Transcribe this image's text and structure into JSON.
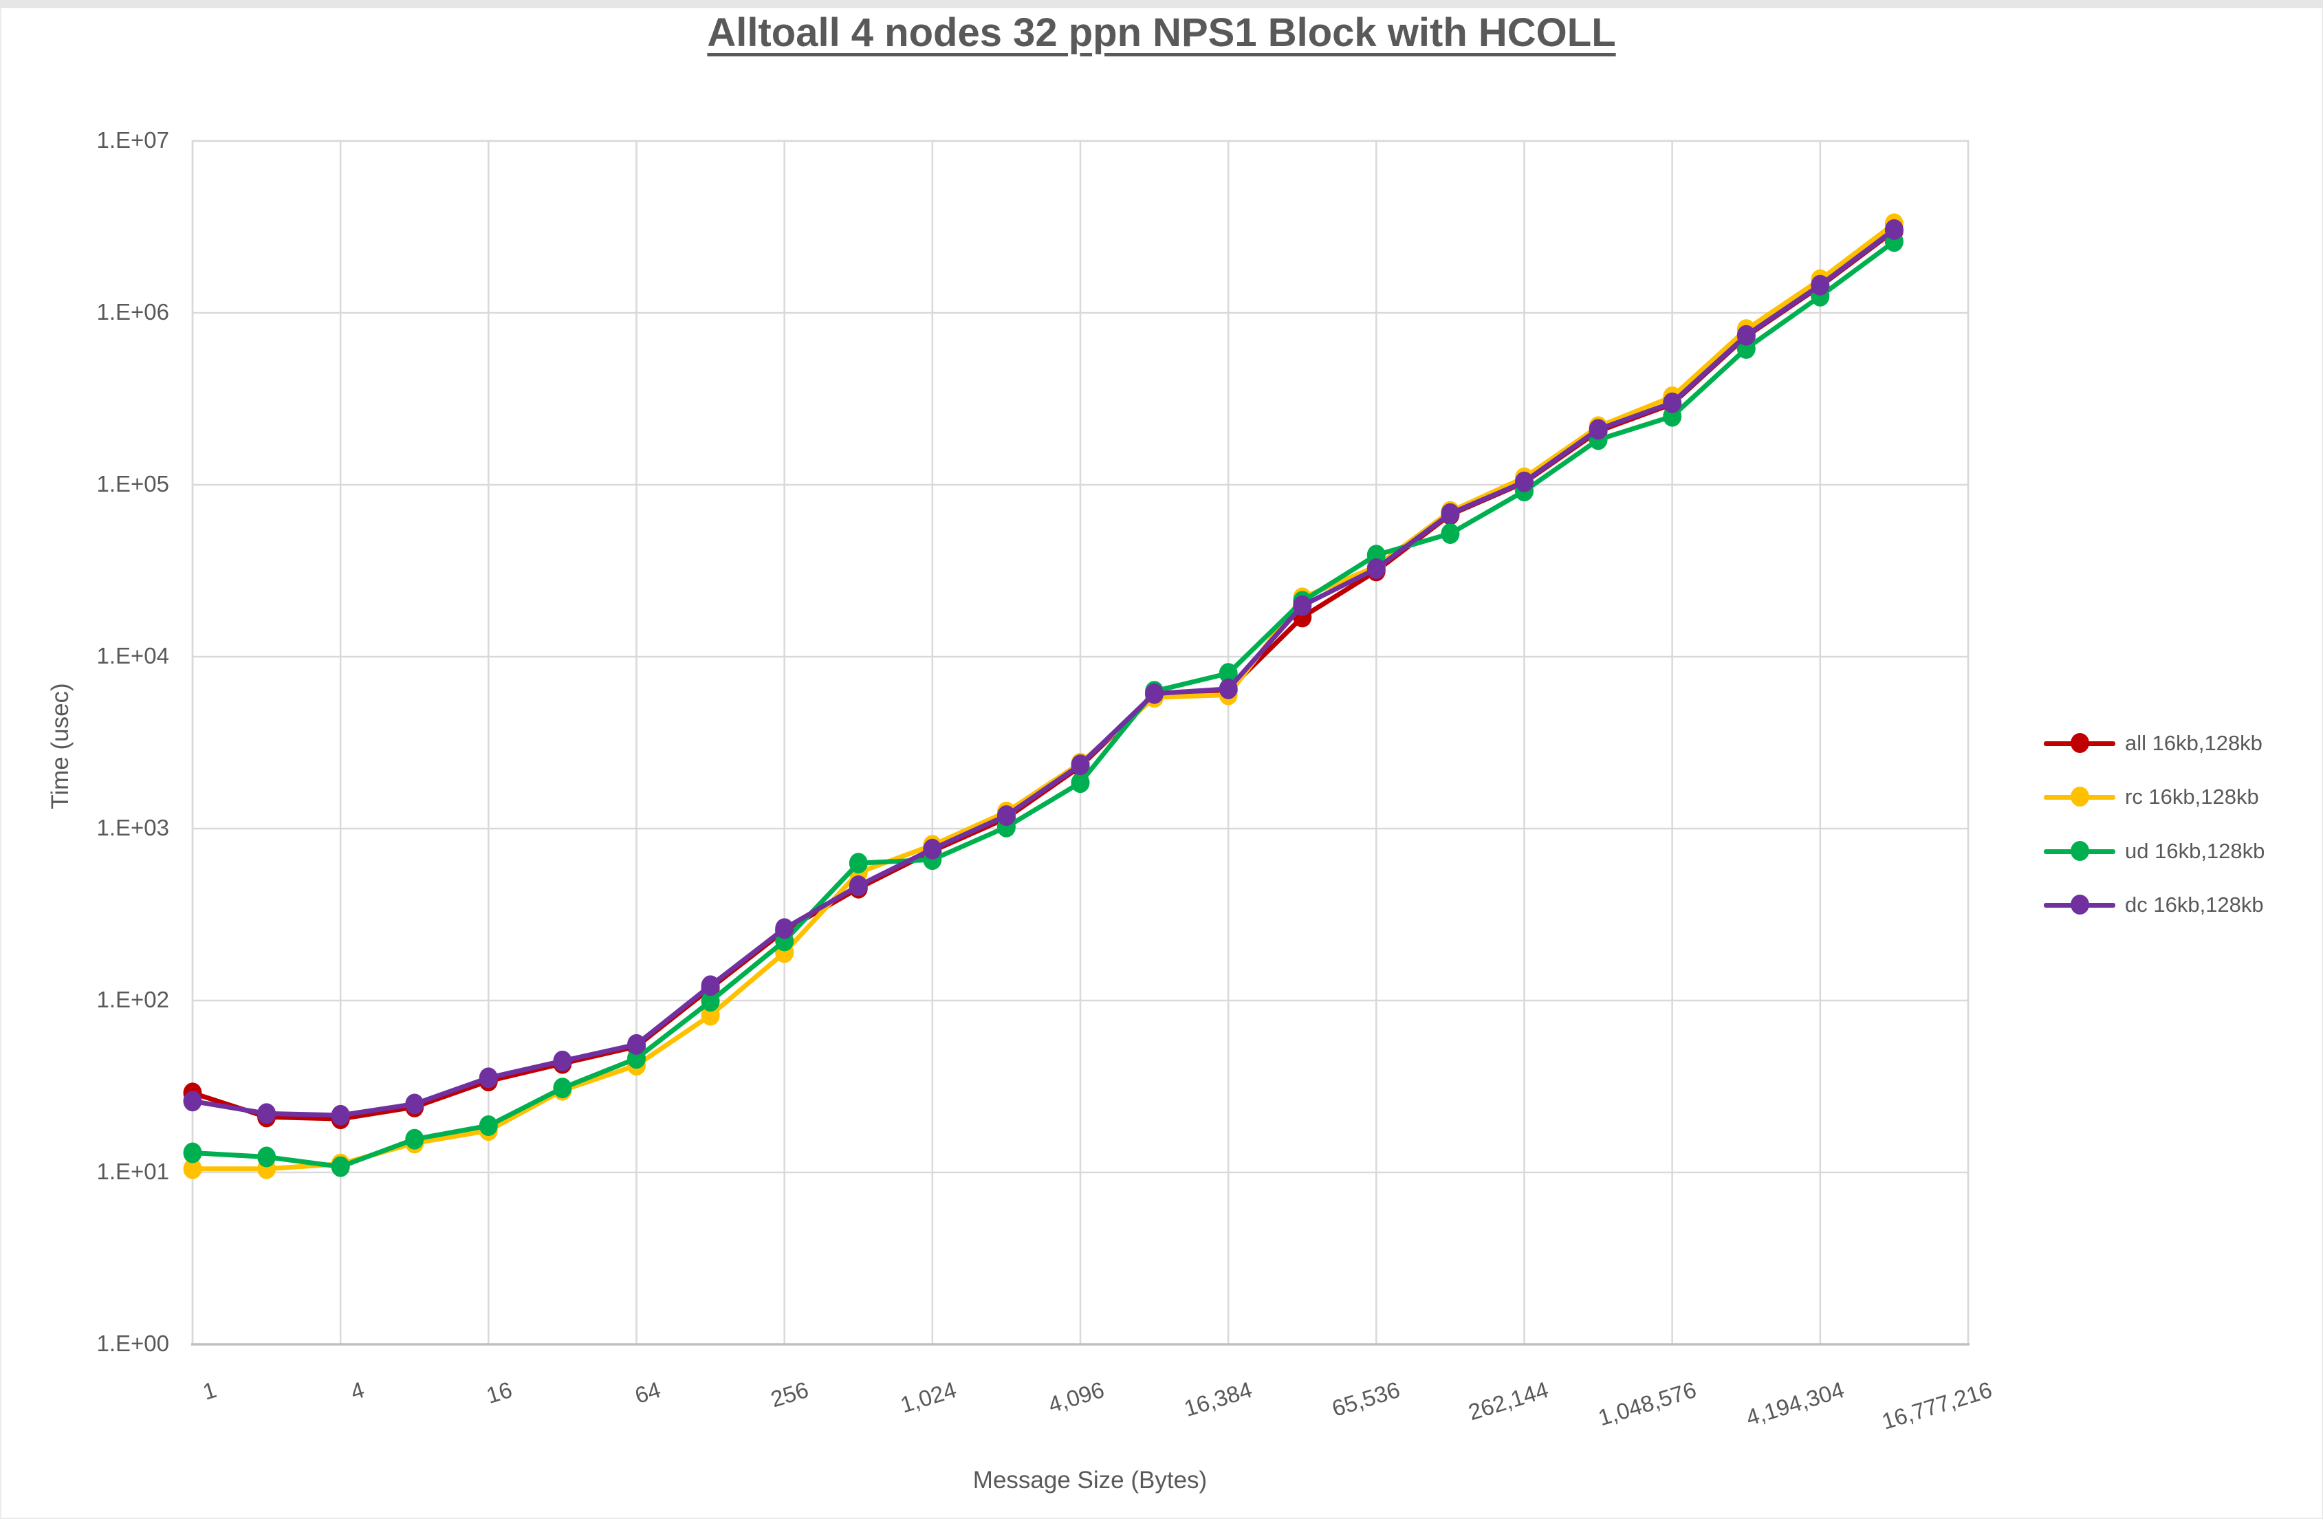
{
  "title": "Alltoall 4 nodes 32 ppn NPS1 Block with HCOLL",
  "colors": {
    "gridline": "#D9D9D9",
    "axis_line": "#BFBFBF",
    "tick_label": "#595959",
    "title_text": "#595959",
    "top_strip": "#E7E6E6",
    "background": "#FFFFFF"
  },
  "chart_data": {
    "type": "line",
    "title": "Alltoall 4 nodes 32 ppn NPS1 Block with HCOLL",
    "xlabel": "Message Size (Bytes)",
    "ylabel": "Time (usec)",
    "x_scale": "log2",
    "y_scale": "log10",
    "xlim": [
      1,
      16777216
    ],
    "ylim": [
      1,
      10000000
    ],
    "grid": true,
    "legend_position": "right",
    "x_ticks": [
      "1",
      "4",
      "16",
      "64",
      "256",
      "1,024",
      "4,096",
      "16,384",
      "65,536",
      "262,144",
      "1,048,576",
      "4,194,304",
      "16,777,216"
    ],
    "y_ticks": [
      "1.E+00",
      "1.E+01",
      "1.E+02",
      "1.E+03",
      "1.E+04",
      "1.E+05",
      "1.E+06",
      "1.E+07"
    ],
    "x": [
      1,
      2,
      4,
      8,
      16,
      32,
      64,
      128,
      256,
      512,
      1024,
      2048,
      4096,
      8192,
      16384,
      32768,
      65536,
      131072,
      262144,
      524288,
      1048576,
      2097152,
      4194304,
      8388608
    ],
    "series": [
      {
        "name": "all 16kb,128kb",
        "color": "#C00000",
        "values": [
          29,
          21,
          20.5,
          24,
          34,
          43,
          54,
          118,
          255,
          450,
          740,
          1150,
          2300,
          6000,
          6400,
          17000,
          31500,
          67000,
          103000,
          205000,
          295000,
          730000,
          1430000,
          3000000
        ]
      },
      {
        "name": "rc 16kb,128kb",
        "color": "#FFC000",
        "values": [
          10.5,
          10.5,
          11.2,
          14.8,
          17.5,
          30,
          42,
          82,
          190,
          555,
          800,
          1250,
          2400,
          5800,
          6000,
          22000,
          33500,
          70000,
          110000,
          218000,
          325000,
          800000,
          1560000,
          3300000
        ]
      },
      {
        "name": "ud 16kb,128kb",
        "color": "#00B050",
        "values": [
          13,
          12.3,
          10.8,
          15.6,
          18.7,
          31,
          46,
          99,
          222,
          630,
          660,
          1020,
          1850,
          6300,
          8000,
          21000,
          39000,
          52000,
          92000,
          183000,
          250000,
          620000,
          1250000,
          2600000
        ]
      },
      {
        "name": "dc 16kb,128kb",
        "color": "#7030A0",
        "values": [
          26,
          22,
          21.5,
          25,
          35.5,
          44.5,
          55.5,
          122,
          262,
          465,
          760,
          1190,
          2350,
          6100,
          6500,
          19800,
          32500,
          68000,
          104000,
          210000,
          300000,
          740000,
          1450000,
          3050000
        ]
      }
    ]
  }
}
